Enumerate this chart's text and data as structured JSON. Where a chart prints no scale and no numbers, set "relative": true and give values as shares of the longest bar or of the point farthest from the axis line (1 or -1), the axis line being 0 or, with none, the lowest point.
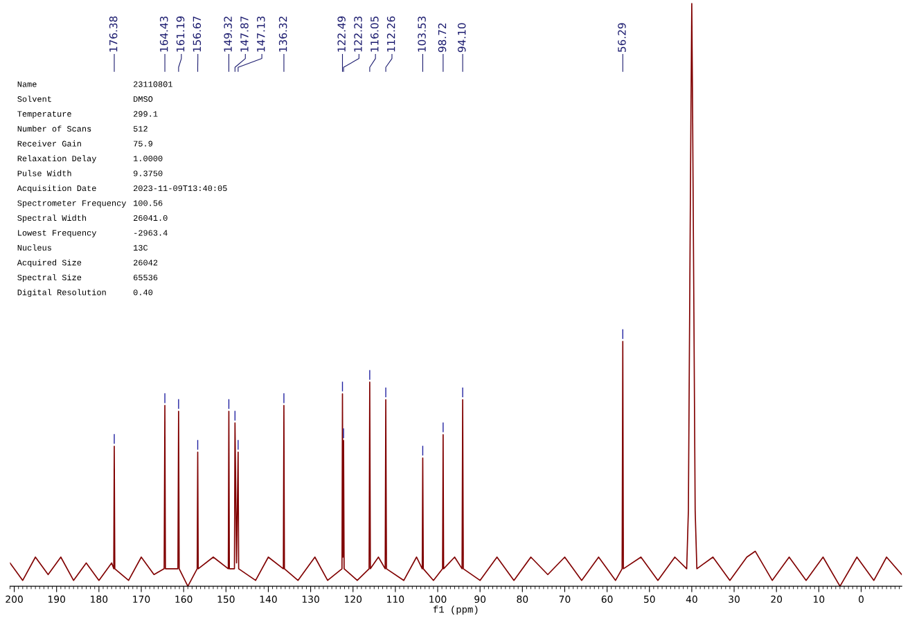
{
  "chart_data": {
    "type": "line",
    "relative": true,
    "xlabel": "f1 (ppm)",
    "xlim": [
      201,
      -9.6
    ],
    "xticks": [
      200,
      190,
      180,
      170,
      160,
      150,
      140,
      130,
      120,
      110,
      100,
      90,
      80,
      70,
      60,
      50,
      40,
      30,
      20,
      10,
      0
    ],
    "grid": false,
    "legend": false,
    "marker": "none",
    "line_style": "solid",
    "x": [
      201,
      198,
      195,
      192,
      189,
      186,
      183,
      180,
      177,
      176.5,
      176.38,
      176.25,
      173,
      170,
      167,
      164.6,
      164.43,
      164.3,
      161.35,
      161.19,
      161.05,
      159,
      156.8,
      156.67,
      156.55,
      153,
      149.45,
      149.32,
      149.2,
      148.0,
      147.87,
      147.5,
      147.13,
      147.0,
      143,
      140,
      136.45,
      136.32,
      136.2,
      133,
      129,
      126,
      122.6,
      122.49,
      122.36,
      122.23,
      122.1,
      119,
      116.2,
      116.05,
      115.9,
      114,
      112.4,
      112.26,
      112.1,
      108,
      105,
      103.65,
      103.53,
      103.4,
      101,
      98.85,
      98.72,
      98.6,
      96,
      94.25,
      94.1,
      93.95,
      90,
      86,
      82,
      78,
      74,
      70,
      66,
      62,
      58,
      56.45,
      56.29,
      56.15,
      52,
      48,
      44,
      41.2,
      40.8,
      40.5,
      40.2,
      40.0,
      39.8,
      39.5,
      39.2,
      38.8,
      35,
      31,
      27,
      25,
      21,
      17,
      13,
      9,
      5,
      1,
      -3,
      -6,
      -9.6
    ],
    "series": [
      {
        "color": "#800000",
        "values": [
          0.04,
          0.01,
          0.05,
          0.02,
          0.05,
          0.01,
          0.04,
          0.01,
          0.04,
          0.03,
          0.24,
          0.03,
          0.01,
          0.05,
          0.02,
          0.03,
          0.31,
          0.03,
          0.03,
          0.3,
          0.03,
          0,
          0.03,
          0.23,
          0.03,
          0.05,
          0.03,
          0.3,
          0.03,
          0.03,
          0.28,
          0.04,
          0.23,
          0.03,
          0.01,
          0.05,
          0.03,
          0.31,
          0.03,
          0.01,
          0.05,
          0.01,
          0.03,
          0.33,
          0.05,
          0.25,
          0.03,
          0.01,
          0.03,
          0.35,
          0.03,
          0.05,
          0.03,
          0.32,
          0.03,
          0.01,
          0.05,
          0.03,
          0.22,
          0.03,
          0.01,
          0.03,
          0.26,
          0.03,
          0.05,
          0.03,
          0.32,
          0.03,
          0.01,
          0.05,
          0.01,
          0.05,
          0.02,
          0.05,
          0.01,
          0.05,
          0.01,
          0.03,
          0.42,
          0.03,
          0.05,
          0.01,
          0.05,
          0.03,
          0.13,
          0.47,
          0.81,
          1.0,
          0.81,
          0.47,
          0.13,
          0.03,
          0.05,
          0.01,
          0.05,
          0.06,
          0.01,
          0.05,
          0.01,
          0.05,
          0,
          0.05,
          0.01,
          0.05,
          0.02
        ]
      }
    ],
    "annotations": [
      "176.38",
      "164.43",
      "161.19",
      "156.67",
      "149.32",
      "147.87",
      "147.13",
      "136.32",
      "122.49",
      "122.23",
      "116.05",
      "112.26",
      "103.53",
      "98.72",
      "94.10",
      "56.29",
      "Name",
      "23110801",
      "Solvent",
      "DMSO",
      "Temperature",
      "299.1",
      "Number of Scans",
      "512",
      "Receiver Gain",
      "75.9",
      "Relaxation Delay",
      "1.0000",
      "Pulse Width",
      "9.3750",
      "Acquisition Date",
      "2023-11-09T13:40:05",
      "Spectrometer Frequency",
      "100.56",
      "Spectral Width",
      "26041.0",
      "Lowest Frequency",
      "-2963.4",
      "Nucleus",
      "13C",
      "Acquired Size",
      "26042",
      "Spectral Size",
      "65536",
      "Digital Resolution",
      "0.40"
    ]
  }
}
